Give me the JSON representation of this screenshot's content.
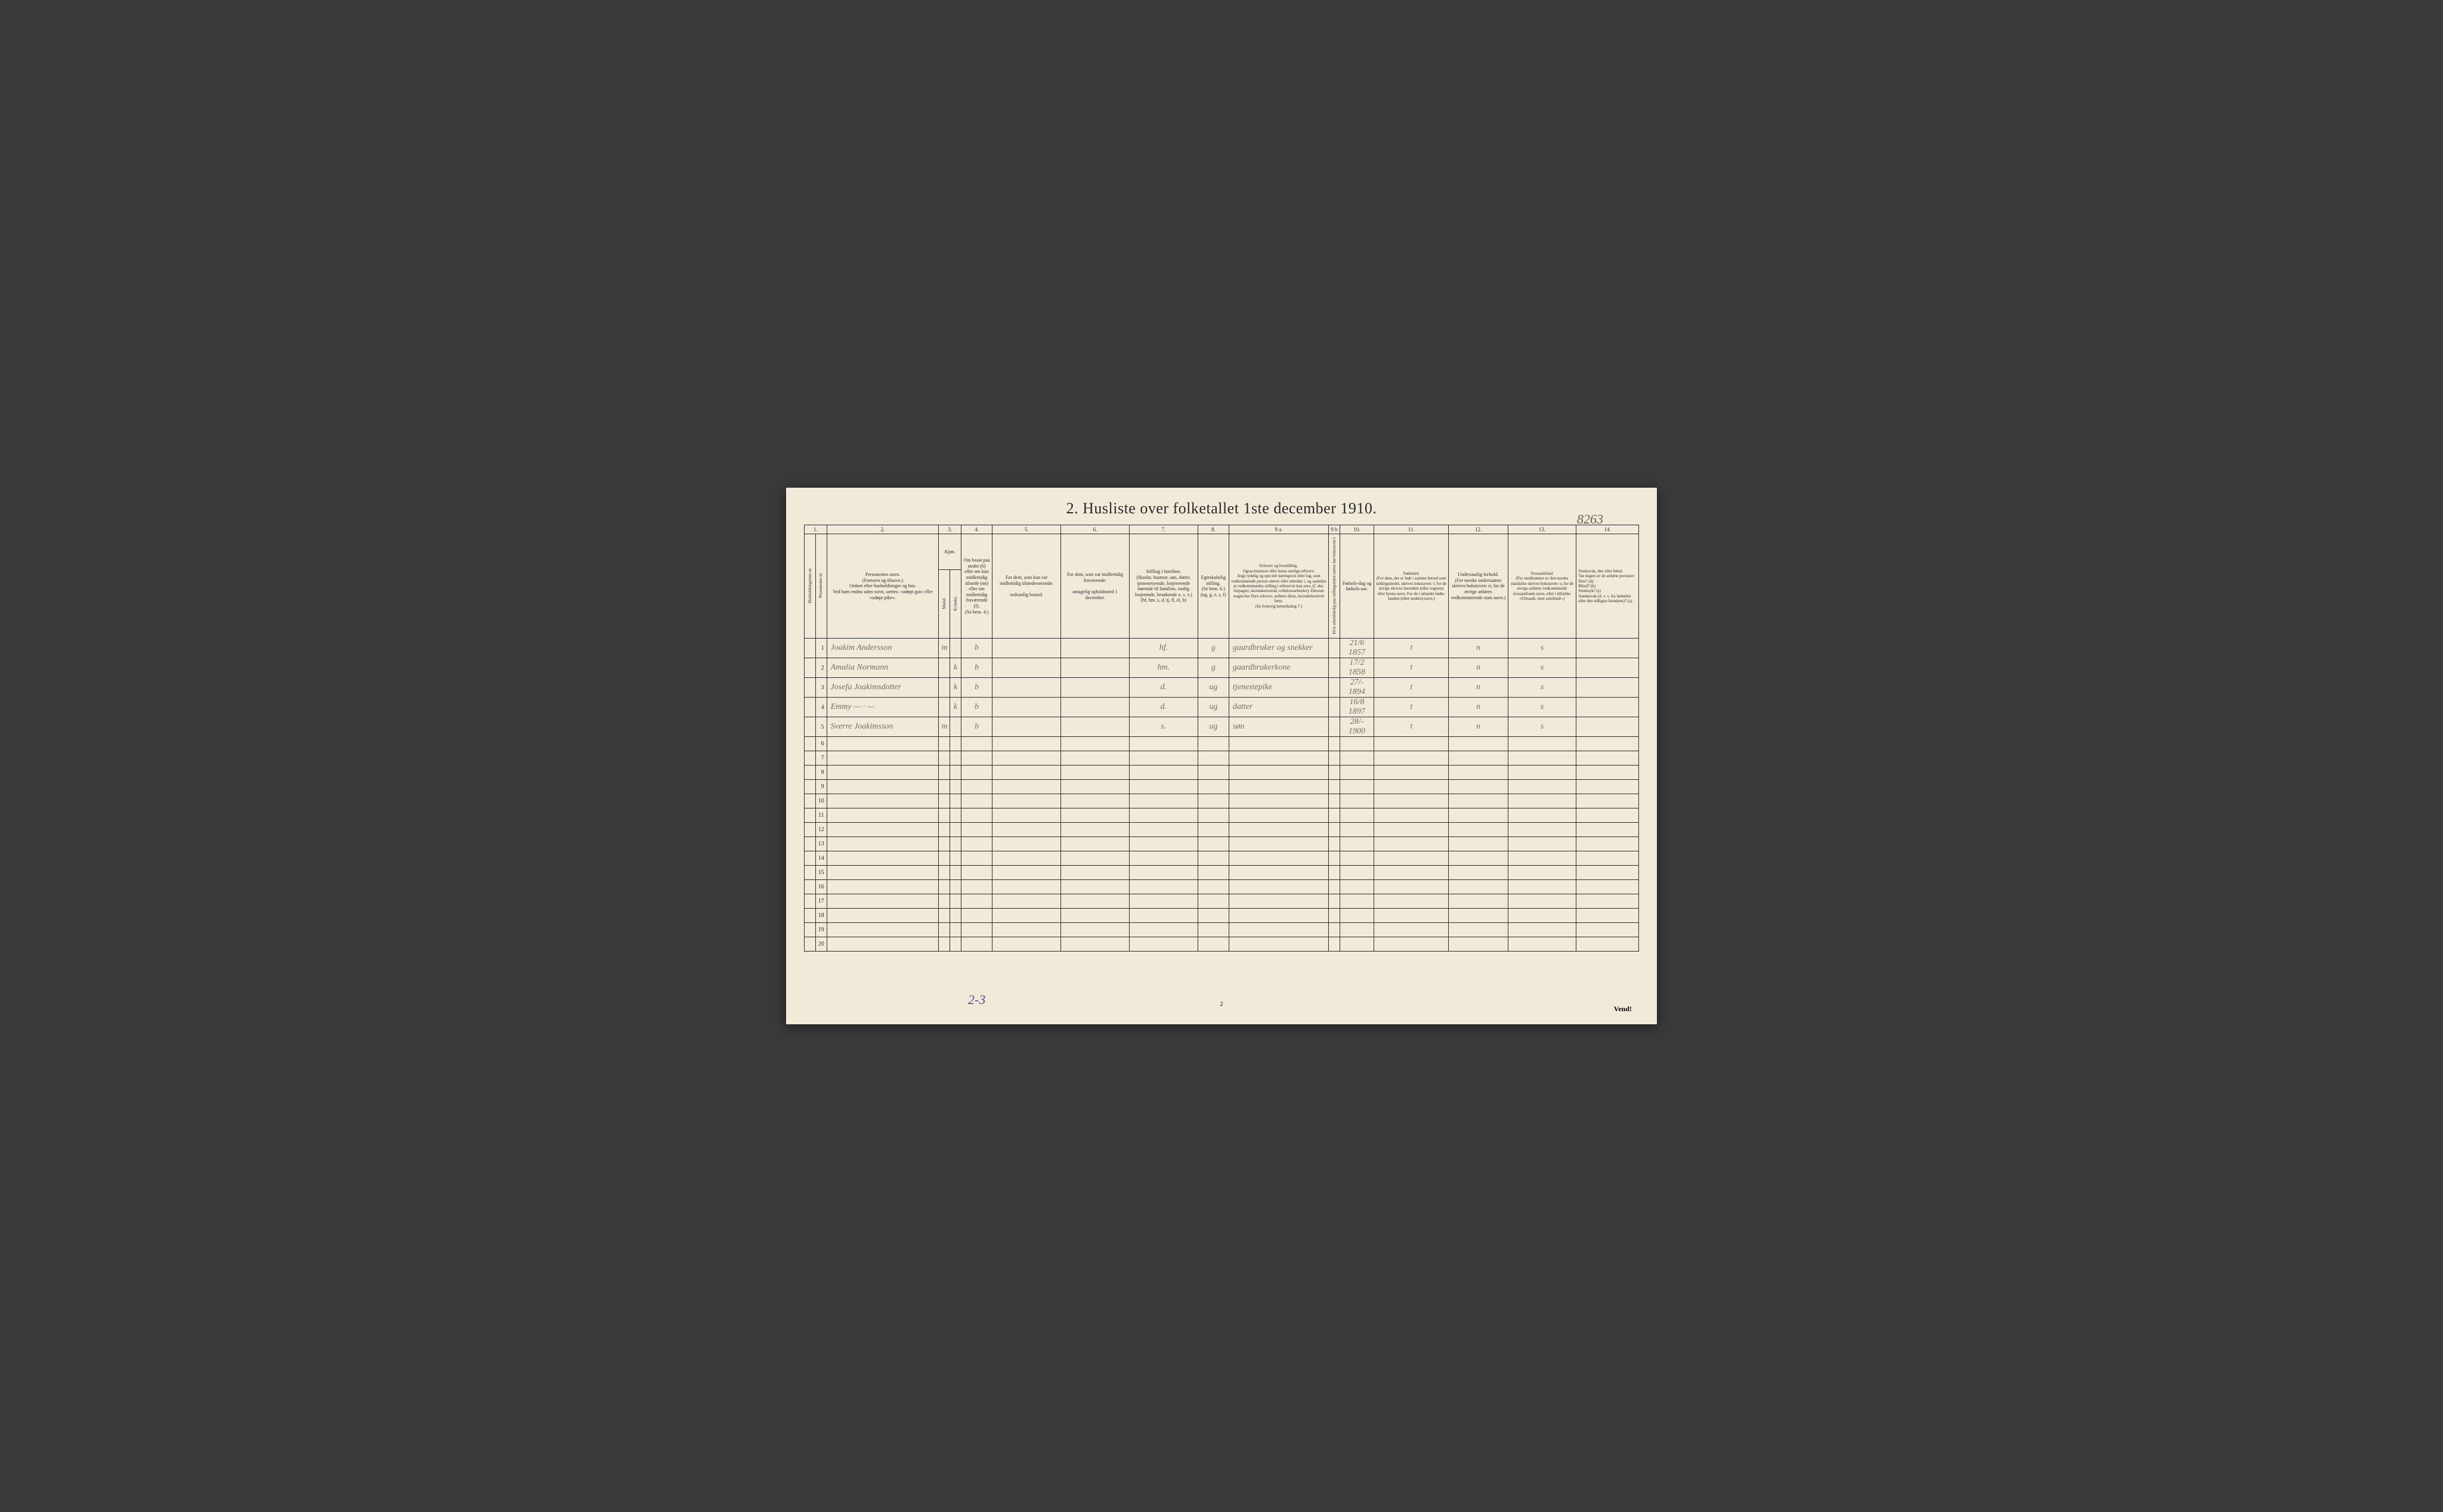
{
  "pageNumberTop": "8263",
  "title": "2.  Husliste over folketallet 1ste december 1910.",
  "columnNumbers": [
    "1.",
    "2.",
    "3.",
    "4.",
    "5.",
    "6.",
    "7.",
    "8.",
    "9 a.",
    "9 b",
    "10.",
    "11.",
    "12.",
    "13.",
    "14."
  ],
  "headers": {
    "h1a": "Husholdningernes nr.",
    "h1b": "Personernes nr.",
    "h2": "Personernes navn.\n(Fornavn og tilnavn.)\nOrdnet efter husholdninger og hus.\nVed barn endnu uden navn, sættes: «udøpt gut» eller «udøpt pike».",
    "h3": "Kjøn.",
    "h3a": "Mænd.",
    "h3b": "Kvinder.",
    "h3sub": "m.  k.",
    "h4": "Om bosat paa stedet (b) eller om kun midlertidig tilstede (mt) eller om midlertidig fraværende (f).\n(Se bem. 4.)",
    "h5": "For dem, som kun var midlertidig tilstedeværende:\n\nsedvanlig bosted.",
    "h6": "For dem, som var midlertidig fraværende:\n\nantagelig opholdssted 1 december.",
    "h7": "Stilling i familien.\n(Husfar, husmor, søn, datter, tjenestetyende, losjererende hørende til familien, enslig losjerende, besøkende o. s. v.)\n(hf, hm, s, d, tj, fl, el, b)",
    "h8": "Egteskabelig stilling.\n(Se bem. 6.)\n(ug, g, e, s, f)",
    "h9a": "Erhverv og livsstilling.\nOgsaa husmors eller barns særlige erhverv.\nAngi tydelig og specielt næringsvei eller fag, som vedkommende person utøver eller arbeider i, og saaledes at vedkommendes stilling i erhvervet kan sees, (f. eks. forpagter, skomakersvend, cellulosearbeider). Dersom nogen har flere erkverv, anføres disse, hovederkvervet først.\n(Se forøvrig bemerkning 7.)",
    "h9b": "Hvis arbeidsledig paa tællingstiden sættes her bokstaven l.",
    "h10": "Fødsels-dag og fødsels-aar.",
    "h11": "Fødested.\n(For dem, der er født i samme herred som tællingsstedet, skrives bokstaven: t; for de øvrige skrives herredets (eller sognets) eller byens navn. For de i utlandet fødte: landets (eller stedets) navn.)",
    "h12": "Undersaatlig forhold.\n(For norske undersaatter skrives bokstaven: n; for de øvrige anføres vedkommmende stats navn.)",
    "h13": "Trossamfund.\n(For medlemmer av den norske statskirke skrives bokstaven: s; for de øvrige anføres vedkommende trossamfunds navn, eller i tilfælde: «Uttraadt, intet samfund».)",
    "h14": "Sindssvak, døv eller blind.\nVar nogen av de anførte personer:\nDøv?        (d)\nBlind?       (b)\nSindssyk?  (s)\nAandssvak (d. v. s. fra fødselen eller den tidligste barndom)? (a)"
  },
  "rows": [
    {
      "num": "1",
      "name": "Joakim Andersson",
      "sex": "m",
      "res": "b",
      "famPos": "hf.",
      "mar": "g",
      "occ": "gaardbruker og snekker",
      "birth": "21/6 1857",
      "place": "t",
      "nat": "n",
      "rel": "s"
    },
    {
      "num": "2",
      "name": "Amalia Normann",
      "sex": "k",
      "res": "b",
      "famPos": "hm.",
      "mar": "g",
      "occ": "gaardbrukerkone",
      "birth": "17/2 1858",
      "place": "t",
      "nat": "n",
      "rel": "s"
    },
    {
      "num": "3",
      "name": "Josefa Joakimsdotter",
      "sex": "k",
      "res": "b",
      "famPos": "d.",
      "mar": "ug",
      "occ": "tjenestepike",
      "birth": "27/- 1894",
      "place": "t",
      "nat": "n",
      "rel": "s"
    },
    {
      "num": "4",
      "name": "Emmy   —  · —",
      "sex": "k",
      "res": "b",
      "famPos": "d.",
      "mar": "ug",
      "occ": "datter",
      "birth": "16/8 1897",
      "place": "t",
      "nat": "n",
      "rel": "s"
    },
    {
      "num": "5",
      "name": "Sverre Joakimsson",
      "sex": "m",
      "res": "b",
      "famPos": "s.",
      "mar": "ug",
      "occ": "søn",
      "birth": "28/- 1900",
      "place": "t",
      "nat": "n",
      "rel": "s"
    }
  ],
  "emptyRowCount": 15,
  "footerNote": "2-3",
  "bottomPageNum": "2",
  "vend": "Vend!"
}
